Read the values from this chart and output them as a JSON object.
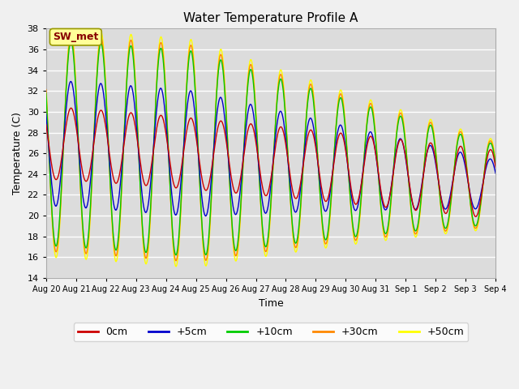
{
  "title": "Water Temperature Profile A",
  "xlabel": "Time",
  "ylabel": "Temperature (C)",
  "ylim": [
    14,
    38
  ],
  "yticks": [
    14,
    16,
    18,
    20,
    22,
    24,
    26,
    28,
    30,
    32,
    34,
    36,
    38
  ],
  "colors": {
    "0cm": "#cc0000",
    "+5cm": "#0000cc",
    "+10cm": "#00cc00",
    "+30cm": "#ff8800",
    "+50cm": "#ffff00"
  },
  "annotation_text": "SW_met",
  "annotation_color": "#880000",
  "annotation_bg": "#ffff99",
  "background_color": "#dcdcdc",
  "grid_color": "#ffffff",
  "title_fontsize": 11,
  "tick_fontsize": 7,
  "axis_label_fontsize": 9
}
